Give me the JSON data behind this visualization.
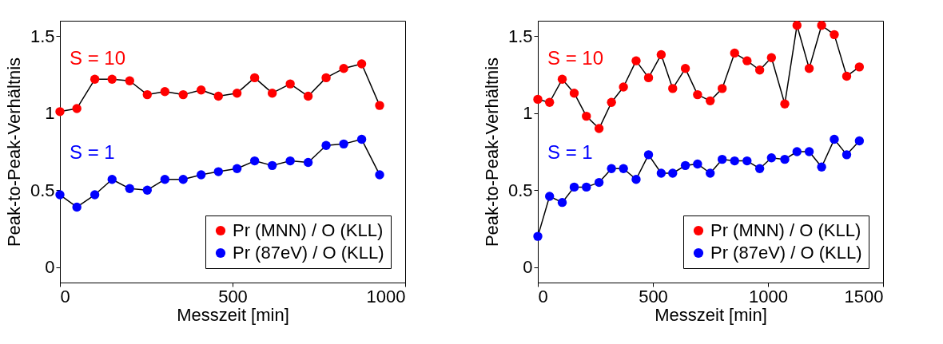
{
  "chart_data": [
    {
      "type": "line",
      "xlabel": "Messzeit [min]",
      "ylabel": "Peak-to-Peak-Verhältnis",
      "xlim": [
        0,
        1000
      ],
      "ylim": [
        -0.1,
        1.6
      ],
      "xticks": [
        0,
        500,
        1000
      ],
      "yticks": [
        0,
        0.5,
        1,
        1.5
      ],
      "grid": false,
      "marker": "circle",
      "legend": "bottom right",
      "x": [
        0,
        49,
        101,
        151,
        202,
        253,
        304,
        357,
        409,
        459,
        513,
        564,
        615,
        667,
        719,
        771,
        822,
        874,
        926
      ],
      "series": [
        {
          "name": "Pr (MNN) / O (KLL)",
          "color": "#ff0000",
          "values": [
            1.01,
            1.03,
            1.22,
            1.22,
            1.21,
            1.12,
            1.14,
            1.12,
            1.15,
            1.11,
            1.13,
            1.23,
            1.13,
            1.19,
            1.11,
            1.23,
            1.29,
            1.32,
            1.05
          ]
        },
        {
          "name": "Pr (87eV) / O (KLL)",
          "color": "#0000ff",
          "values": [
            0.47,
            0.39,
            0.47,
            0.57,
            0.51,
            0.5,
            0.57,
            0.57,
            0.6,
            0.62,
            0.64,
            0.69,
            0.66,
            0.69,
            0.68,
            0.79,
            0.8,
            0.83,
            0.6
          ]
        }
      ],
      "annotations": [
        "S = 10",
        "S = 1"
      ]
    },
    {
      "type": "line",
      "xlabel": "Messzeit [min]",
      "ylabel": "Peak-to-Peak-Verhältnis",
      "xlim": [
        0,
        1500
      ],
      "ylim": [
        -0.1,
        1.6
      ],
      "xticks": [
        0,
        500,
        1000,
        1500
      ],
      "yticks": [
        0,
        0.5,
        1,
        1.5
      ],
      "grid": false,
      "marker": "circle",
      "legend": "bottom right",
      "x": [
        0,
        51,
        106,
        158,
        211,
        266,
        320,
        372,
        427,
        481,
        536,
        586,
        641,
        694,
        749,
        801,
        855,
        909,
        964,
        1015,
        1073,
        1126,
        1179,
        1233,
        1288,
        1342,
        1397
      ],
      "series": [
        {
          "name": "Pr (MNN) / O (KLL)",
          "color": "#ff0000",
          "values": [
            1.09,
            1.07,
            1.22,
            1.13,
            0.98,
            0.9,
            1.07,
            1.17,
            1.34,
            1.23,
            1.38,
            1.16,
            1.29,
            1.12,
            1.08,
            1.16,
            1.39,
            1.34,
            1.28,
            1.36,
            1.06,
            1.57,
            1.29,
            1.57,
            1.51,
            1.24,
            1.3
          ]
        },
        {
          "name": "Pr (87eV) / O (KLL)",
          "color": "#0000ff",
          "values": [
            0.2,
            0.46,
            0.42,
            0.52,
            0.52,
            0.55,
            0.64,
            0.64,
            0.57,
            0.73,
            0.61,
            0.61,
            0.66,
            0.67,
            0.61,
            0.7,
            0.69,
            0.69,
            0.64,
            0.71,
            0.7,
            0.75,
            0.75,
            0.65,
            0.83,
            0.73,
            0.82
          ]
        }
      ],
      "annotations": [
        "S = 10",
        "S = 1"
      ]
    }
  ]
}
